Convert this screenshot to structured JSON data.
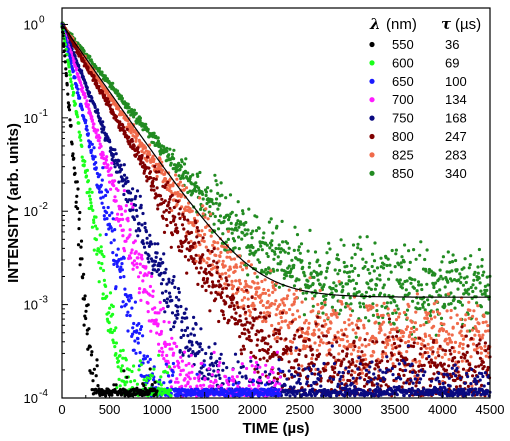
{
  "chart_data": {
    "type": "scatter",
    "xlabel": "TIME (µs)",
    "ylabel": "INTENSITY (arb. units)",
    "xlim": [
      0,
      4500
    ],
    "ylim": [
      0.0001,
      1.5
    ],
    "yscale": "log",
    "x_ticks": [
      {
        "value": 0,
        "label": "0"
      },
      {
        "value": 500,
        "label": "500"
      },
      {
        "value": 1000,
        "label": "1000"
      },
      {
        "value": 1500,
        "label": "1500"
      },
      {
        "value": 2000,
        "label": "2000"
      },
      {
        "value": 2500,
        "label": "2500"
      },
      {
        "value": 3000,
        "label": "3000"
      },
      {
        "value": 3500,
        "label": "3500"
      },
      {
        "value": 4000,
        "label": "4000"
      },
      {
        "value": 4500,
        "label": "4500"
      }
    ],
    "y_ticks": [
      {
        "value": 1,
        "base": "10",
        "exp": "0"
      },
      {
        "value": 0.1,
        "base": "10",
        "exp": "-1"
      },
      {
        "value": 0.01,
        "base": "10",
        "exp": "-2"
      },
      {
        "value": 0.001,
        "base": "10",
        "exp": "-3"
      },
      {
        "value": 0.0001,
        "base": "10",
        "exp": "-4"
      }
    ],
    "grid": false,
    "legend": {
      "placement": "top-right",
      "col1_symbol": "λ",
      "col1_unit": "(nm)",
      "col2_symbol": "τ",
      "col2_unit": "(µs)"
    },
    "series": [
      {
        "name": "550",
        "tau": "36",
        "tau_value": 36,
        "color": "#000000",
        "x_end": 1000,
        "floor": 0.0001
      },
      {
        "name": "600",
        "tau": "69",
        "tau_value": 69,
        "color": "#1aff1a",
        "x_end": 1150,
        "floor": 0.00015
      },
      {
        "name": "650",
        "tau": "100",
        "tau_value": 100,
        "color": "#1a1aff",
        "x_end": 2300,
        "floor": 0.0001
      },
      {
        "name": "700",
        "tau": "134",
        "tau_value": 134,
        "color": "#ff1aff",
        "x_end": 2300,
        "floor": 0.00015
      },
      {
        "name": "750",
        "tau": "168",
        "tau_value": 168,
        "color": "#0a0a80",
        "x_end": 4500,
        "floor": 0.00015
      },
      {
        "name": "800",
        "tau": "247",
        "tau_value": 247,
        "color": "#800000",
        "x_end": 4500,
        "floor": 0.0003
      },
      {
        "name": "825",
        "tau": "283",
        "tau_value": 283,
        "color": "#f06a4a",
        "x_end": 4500,
        "floor": 0.0007
      },
      {
        "name": "850",
        "tau": "340",
        "tau_value": 340,
        "color": "#228b22",
        "x_end": 4500,
        "floor": 0.0025
      }
    ],
    "fit_curve": {
      "color": "#000000",
      "tau_value": 300,
      "offset": 0.0012
    }
  }
}
